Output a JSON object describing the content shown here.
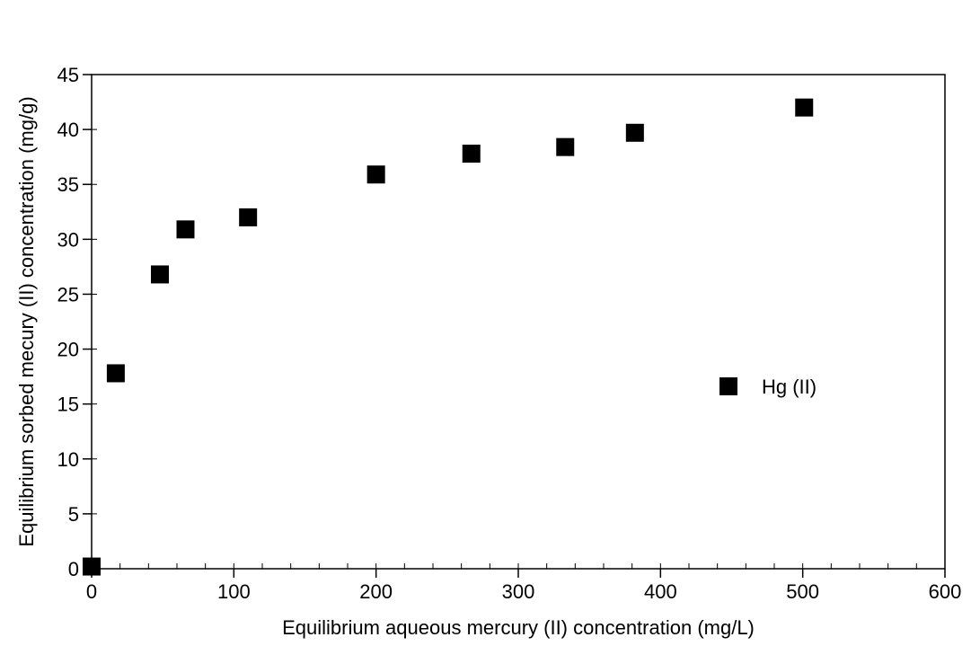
{
  "chart_data": {
    "type": "scatter",
    "title": "",
    "xlabel": "Equilibrium aqueous mercury (II) concentration (mg/L)",
    "ylabel": "Equilibrium sorbed mecury (II) concentration (mg/g)",
    "xlim": [
      0,
      600
    ],
    "ylim": [
      0,
      45
    ],
    "x_ticks": [
      0,
      100,
      200,
      300,
      400,
      500,
      600
    ],
    "y_ticks": [
      0,
      5,
      10,
      15,
      20,
      25,
      30,
      35,
      40,
      45
    ],
    "x_tick_labels": [
      "0",
      "100",
      "200",
      "300",
      "400",
      "500",
      "600"
    ],
    "y_tick_labels": [
      "0",
      "5",
      "10",
      "15",
      "20",
      "25",
      "30",
      "35",
      "40",
      "45"
    ],
    "grid": false,
    "legend_position": "right",
    "series": [
      {
        "name": "Hg (II)",
        "marker": "square",
        "color": "#000000",
        "x": [
          0,
          17,
          48,
          66,
          110,
          200,
          267,
          333,
          382,
          501
        ],
        "y": [
          0.2,
          17.8,
          26.8,
          30.9,
          32.0,
          35.9,
          37.8,
          38.4,
          39.7,
          42.0
        ]
      }
    ]
  }
}
